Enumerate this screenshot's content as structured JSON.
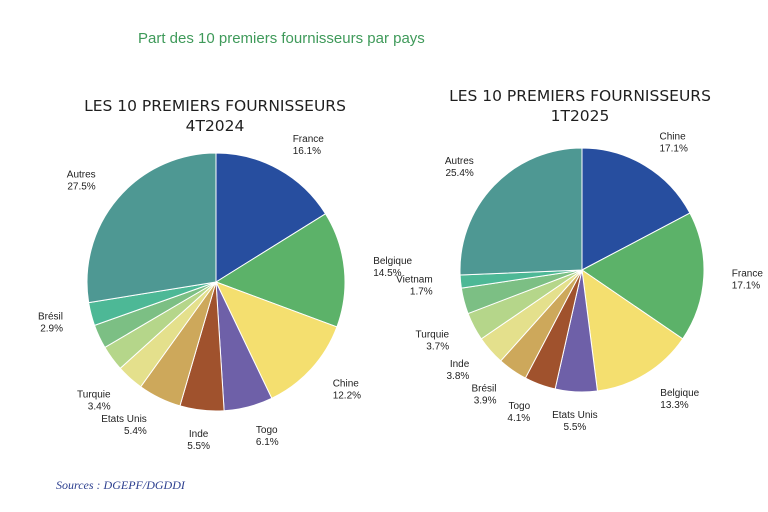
{
  "page": {
    "title": "Part des 10 premiers fournisseurs par pays",
    "sources": "Sources : DGEPF/DGDDI"
  },
  "chart_data": [
    {
      "type": "pie",
      "title_line1": "LES 10 PREMIERS FOURNISSEURS",
      "title_line2": "4T2024",
      "slices": [
        {
          "label": "France",
          "pct": "16.1%",
          "value": 16.1,
          "color": "#274e9f"
        },
        {
          "label": "Belgique",
          "pct": "14.5%",
          "value": 14.5,
          "color": "#5cb269"
        },
        {
          "label": "Chine",
          "pct": "12.2%",
          "value": 12.2,
          "color": "#f4df6f"
        },
        {
          "label": "Togo",
          "pct": "6.1%",
          "value": 6.1,
          "color": "#6e60a8"
        },
        {
          "label": "Inde",
          "pct": "5.5%",
          "value": 5.5,
          "color": "#a0522d"
        },
        {
          "label": "Etats Unis",
          "pct": "5.4%",
          "value": 5.4,
          "color": "#cda85b"
        },
        {
          "label": "Turquie",
          "pct": "3.4%",
          "value": 3.4,
          "color": "#e4e08c"
        },
        {
          "label": "",
          "pct": "",
          "value": 3.2,
          "color": "#b5d68a"
        },
        {
          "label": "",
          "pct": "",
          "value": 3.0,
          "color": "#7cbf84"
        },
        {
          "label": "Brésil",
          "pct": "2.9%",
          "value": 2.9,
          "color": "#4db896"
        },
        {
          "label": "Autres",
          "pct": "27.5%",
          "value": 27.5,
          "color": "#4e9893"
        }
      ]
    },
    {
      "type": "pie",
      "title_line1": "LES 10 PREMIERS FOURNISSEURS",
      "title_line2": "1T2025",
      "slices": [
        {
          "label": "Chine",
          "pct": "17.1%",
          "value": 17.1,
          "color": "#274e9f"
        },
        {
          "label": "France",
          "pct": "17.1%",
          "value": 17.1,
          "color": "#5cb269"
        },
        {
          "label": "Belgique",
          "pct": "13.3%",
          "value": 13.3,
          "color": "#f4df6f"
        },
        {
          "label": "Etats Unis",
          "pct": "5.5%",
          "value": 5.5,
          "color": "#6e60a8"
        },
        {
          "label": "Togo",
          "pct": "4.1%",
          "value": 4.1,
          "color": "#a0522d"
        },
        {
          "label": "Brésil",
          "pct": "3.9%",
          "value": 3.9,
          "color": "#cda85b"
        },
        {
          "label": "Inde",
          "pct": "3.8%",
          "value": 3.8,
          "color": "#e4e08c"
        },
        {
          "label": "Turquie",
          "pct": "3.7%",
          "value": 3.7,
          "color": "#b5d68a"
        },
        {
          "label": "",
          "pct": "",
          "value": 3.4,
          "color": "#7cbf84"
        },
        {
          "label": "Vietnam",
          "pct": "1.7%",
          "value": 1.7,
          "color": "#4db896"
        },
        {
          "label": "Autres",
          "pct": "25.4%",
          "value": 25.4,
          "color": "#4e9893"
        }
      ]
    }
  ]
}
